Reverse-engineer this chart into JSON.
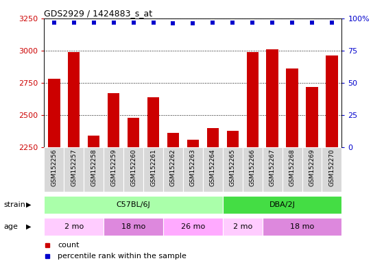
{
  "title": "GDS2929 / 1424883_s_at",
  "samples": [
    "GSM152256",
    "GSM152257",
    "GSM152258",
    "GSM152259",
    "GSM152260",
    "GSM152261",
    "GSM152262",
    "GSM152263",
    "GSM152264",
    "GSM152265",
    "GSM152266",
    "GSM152267",
    "GSM152268",
    "GSM152269",
    "GSM152270"
  ],
  "counts": [
    2780,
    2990,
    2340,
    2670,
    2480,
    2640,
    2360,
    2310,
    2400,
    2380,
    2990,
    3010,
    2860,
    2720,
    2960
  ],
  "percentile_ranks": [
    97,
    97,
    97,
    97,
    97,
    97,
    96,
    96,
    97,
    97,
    97,
    97,
    97,
    97,
    97
  ],
  "ylim_left": [
    2250,
    3250
  ],
  "ylim_right": [
    0,
    100
  ],
  "yticks_left": [
    2250,
    2500,
    2750,
    3000,
    3250
  ],
  "yticks_right": [
    0,
    25,
    50,
    75,
    100
  ],
  "bar_color": "#cc0000",
  "dot_color": "#0000cc",
  "strain_labels": [
    {
      "label": "C57BL/6J",
      "start": 0,
      "end": 9,
      "color": "#aaffaa"
    },
    {
      "label": "DBA/2J",
      "start": 9,
      "end": 15,
      "color": "#44dd44"
    }
  ],
  "age_groups": [
    {
      "label": "2 mo",
      "start": 0,
      "end": 3,
      "color": "#ffccff"
    },
    {
      "label": "18 mo",
      "start": 3,
      "end": 6,
      "color": "#dd88dd"
    },
    {
      "label": "26 mo",
      "start": 6,
      "end": 9,
      "color": "#ffaaff"
    },
    {
      "label": "2 mo",
      "start": 9,
      "end": 11,
      "color": "#ffccff"
    },
    {
      "label": "18 mo",
      "start": 11,
      "end": 15,
      "color": "#dd88dd"
    }
  ],
  "background_color": "#ffffff",
  "grid_color": "#000000",
  "axis_color_left": "#cc0000",
  "axis_color_right": "#0000cc",
  "label_bg": "#d8d8d8"
}
